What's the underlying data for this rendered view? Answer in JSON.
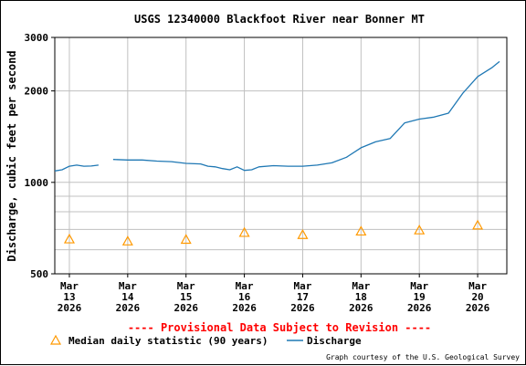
{
  "chart_data": {
    "type": "line",
    "title": "USGS 12340000 Blackfoot River near Bonner MT",
    "ylabel": "Discharge, cubic feet per second",
    "xlabel": "",
    "y_scale": "log",
    "ylim": [
      500,
      3000
    ],
    "y_ticks": [
      500,
      1000,
      2000,
      3000
    ],
    "y_tick_labels": [
      "500",
      "1000",
      "2000",
      "3000"
    ],
    "y_minor_gridlines": [
      600,
      700,
      800,
      900
    ],
    "xlim": [
      "2026-03-12T18:00",
      "2026-03-20T12:00"
    ],
    "x_ticks": [
      {
        "t": "2026-03-13",
        "label": [
          "Mar",
          "13",
          "2026"
        ]
      },
      {
        "t": "2026-03-14",
        "label": [
          "Mar",
          "14",
          "2026"
        ]
      },
      {
        "t": "2026-03-15",
        "label": [
          "Mar",
          "15",
          "2026"
        ]
      },
      {
        "t": "2026-03-16",
        "label": [
          "Mar",
          "16",
          "2026"
        ]
      },
      {
        "t": "2026-03-17",
        "label": [
          "Mar",
          "17",
          "2026"
        ]
      },
      {
        "t": "2026-03-18",
        "label": [
          "Mar",
          "18",
          "2026"
        ]
      },
      {
        "t": "2026-03-19",
        "label": [
          "Mar",
          "19",
          "2026"
        ]
      },
      {
        "t": "2026-03-20",
        "label": [
          "Mar",
          "20",
          "2026"
        ]
      }
    ],
    "grid": true,
    "series": [
      {
        "name": "Discharge",
        "color": "#1f78b4",
        "segments": [
          [
            [
              "2026-03-12T18:00",
              1090
            ],
            [
              "2026-03-12T21:00",
              1100
            ],
            [
              "2026-03-13T00:00",
              1130
            ],
            [
              "2026-03-13T03:00",
              1140
            ],
            [
              "2026-03-13T06:00",
              1130
            ],
            [
              "2026-03-13T09:00",
              1132
            ],
            [
              "2026-03-13T12:00",
              1140
            ]
          ],
          [
            [
              "2026-03-13T18:00",
              1190
            ],
            [
              "2026-03-14T00:00",
              1185
            ],
            [
              "2026-03-14T06:00",
              1185
            ],
            [
              "2026-03-14T12:00",
              1175
            ],
            [
              "2026-03-14T18:00",
              1170
            ],
            [
              "2026-03-15T00:00",
              1155
            ],
            [
              "2026-03-15T06:00",
              1150
            ],
            [
              "2026-03-15T09:00",
              1130
            ],
            [
              "2026-03-15T12:00",
              1125
            ],
            [
              "2026-03-15T15:00",
              1110
            ],
            [
              "2026-03-15T18:00",
              1100
            ],
            [
              "2026-03-15T21:00",
              1125
            ],
            [
              "2026-03-16T00:00",
              1095
            ],
            [
              "2026-03-16T03:00",
              1100
            ],
            [
              "2026-03-16T06:00",
              1125
            ],
            [
              "2026-03-16T12:00",
              1135
            ],
            [
              "2026-03-16T18:00",
              1130
            ],
            [
              "2026-03-17T00:00",
              1130
            ],
            [
              "2026-03-17T06:00",
              1140
            ],
            [
              "2026-03-17T12:00",
              1160
            ],
            [
              "2026-03-17T18:00",
              1210
            ],
            [
              "2026-03-18T00:00",
              1300
            ],
            [
              "2026-03-18T06:00",
              1360
            ],
            [
              "2026-03-18T12:00",
              1395
            ],
            [
              "2026-03-18T18:00",
              1570
            ],
            [
              "2026-03-19T00:00",
              1615
            ],
            [
              "2026-03-19T06:00",
              1640
            ],
            [
              "2026-03-19T12:00",
              1690
            ],
            [
              "2026-03-19T18:00",
              1970
            ],
            [
              "2026-03-20T00:00",
              2230
            ],
            [
              "2026-03-20T06:00",
              2390
            ],
            [
              "2026-03-20T09:00",
              2500
            ]
          ]
        ]
      },
      {
        "name": "Median daily statistic (90 years)",
        "color": "#ff9900",
        "marker": "triangle",
        "points": [
          [
            "2026-03-13T00:00",
            650
          ],
          [
            "2026-03-14T00:00",
            640
          ],
          [
            "2026-03-15T00:00",
            648
          ],
          [
            "2026-03-16T00:00",
            683
          ],
          [
            "2026-03-17T00:00",
            672
          ],
          [
            "2026-03-18T00:00",
            690
          ],
          [
            "2026-03-19T00:00",
            696
          ],
          [
            "2026-03-20T00:00",
            722
          ]
        ]
      }
    ],
    "legend": {
      "placement": "bottom",
      "entries": [
        "Median daily statistic (90 years)",
        "Discharge"
      ]
    }
  },
  "provisional_note": "---- Provisional Data Subject to Revision ----",
  "credit": "Graph courtesy of the U.S. Geological Survey",
  "colors": {
    "discharge": "#1f78b4",
    "median": "#ff9900",
    "provisional": "#ff0000",
    "grid": "#c0c0c0"
  }
}
